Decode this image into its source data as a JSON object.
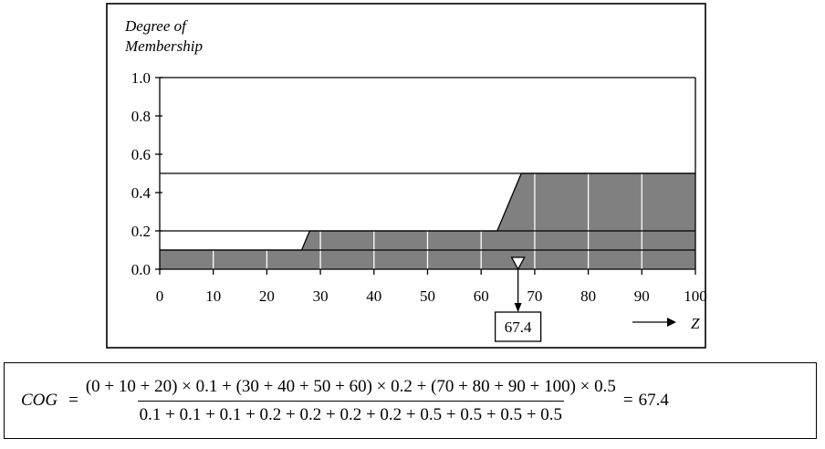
{
  "chart_data": {
    "type": "area",
    "ylabel_line1": "Degree of",
    "ylabel_line2": "Membership",
    "xlabel": "Z",
    "xlim": [
      0,
      100
    ],
    "ylim": [
      0,
      1
    ],
    "xticks": [
      "0",
      "10",
      "20",
      "30",
      "40",
      "50",
      "60",
      "70",
      "80",
      "90",
      "100"
    ],
    "yticks": [
      "0.0",
      "0.2",
      "0.4",
      "0.6",
      "0.8",
      "1.0"
    ],
    "aggregated_membership": {
      "x": [
        0,
        26.5,
        28,
        63,
        67.5,
        100
      ],
      "y": [
        0.1,
        0.1,
        0.2,
        0.2,
        0.5,
        0.5
      ]
    },
    "clip_levels": [
      0.1,
      0.2,
      0.5,
      1.0
    ],
    "sample_points": [
      10,
      20,
      30,
      40,
      50,
      60,
      70,
      80,
      90
    ],
    "cog_value": 67.4,
    "cog_label": "67.4"
  },
  "colors": {
    "fill": "#808080",
    "sample_line": "#ffffff",
    "line": "#000000"
  },
  "formula": {
    "lhs": "COG",
    "eq1": "=",
    "numerator": "(0 + 10 + 20) × 0.1 + (30 + 40 + 50 + 60) × 0.2 + (70 + 80 + 90 + 100) × 0.5",
    "denominator": "0.1 + 0.1 + 0.1 + 0.2 + 0.2 + 0.2 + 0.2 + 0.5 + 0.5 + 0.5 + 0.5",
    "eq2": "=",
    "result": "67.4"
  }
}
